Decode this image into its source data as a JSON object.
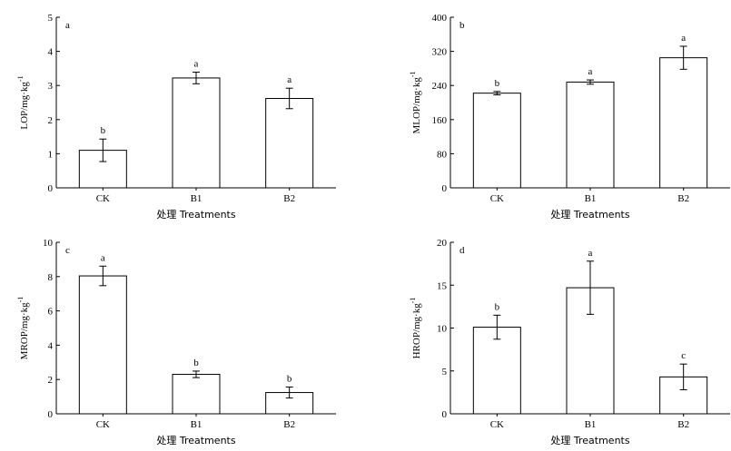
{
  "chart_data": [
    {
      "type": "bar",
      "panel_letter": "a",
      "categories": [
        "CK",
        "B1",
        "B2"
      ],
      "values": [
        1.1,
        3.22,
        2.62
      ],
      "errors": [
        0.33,
        0.17,
        0.3
      ],
      "significance": [
        "b",
        "a",
        "a"
      ],
      "ylim": [
        0,
        5
      ],
      "yticks": [
        0,
        1,
        2,
        3,
        4,
        5
      ],
      "ytick_labels": [
        "0",
        "1",
        "2",
        "3",
        "4",
        "5"
      ],
      "ylabel_main": "LOP/mg·kg",
      "ylabel_sup": "-1",
      "xlabel": "处理 Treatments"
    },
    {
      "type": "bar",
      "panel_letter": "b",
      "categories": [
        "CK",
        "B1",
        "B2"
      ],
      "values": [
        222,
        248,
        305
      ],
      "errors": [
        4,
        5,
        27
      ],
      "significance": [
        "b",
        "a",
        "a"
      ],
      "ylim": [
        0,
        400
      ],
      "yticks": [
        0,
        80,
        160,
        240,
        320,
        400
      ],
      "ytick_labels": [
        "0",
        "80",
        "160",
        "240",
        "320",
        "400"
      ],
      "ylabel_main": "MLOP/mg·kg",
      "ylabel_sup": "-1",
      "xlabel": "处理 Treatments"
    },
    {
      "type": "bar",
      "panel_letter": "c",
      "categories": [
        "CK",
        "B1",
        "B2"
      ],
      "values": [
        8.04,
        2.3,
        1.24
      ],
      "errors": [
        0.57,
        0.19,
        0.32
      ],
      "significance": [
        "a",
        "b",
        "b"
      ],
      "ylim": [
        0,
        10
      ],
      "yticks": [
        0,
        2,
        4,
        6,
        8,
        10
      ],
      "ytick_labels": [
        "0",
        "2",
        "4",
        "6",
        "8",
        "10"
      ],
      "ylabel_main": "MROP/mg·kg",
      "ylabel_sup": "-1",
      "xlabel": "处理 Treatments"
    },
    {
      "type": "bar",
      "panel_letter": "d",
      "categories": [
        "CK",
        "B1",
        "B2"
      ],
      "values": [
        10.1,
        14.7,
        4.3
      ],
      "errors": [
        1.4,
        3.1,
        1.5
      ],
      "significance": [
        "b",
        "a",
        "c"
      ],
      "ylim": [
        0,
        20
      ],
      "yticks": [
        0,
        5,
        10,
        15,
        20
      ],
      "ytick_labels": [
        "0",
        "5",
        "10",
        "15",
        "20"
      ],
      "ylabel_main": "HROP/mg·kg",
      "ylabel_sup": "-1",
      "xlabel": "处理 Treatments"
    }
  ],
  "colors": {
    "bar_fill": "#ffffff",
    "stroke": "#000000"
  }
}
